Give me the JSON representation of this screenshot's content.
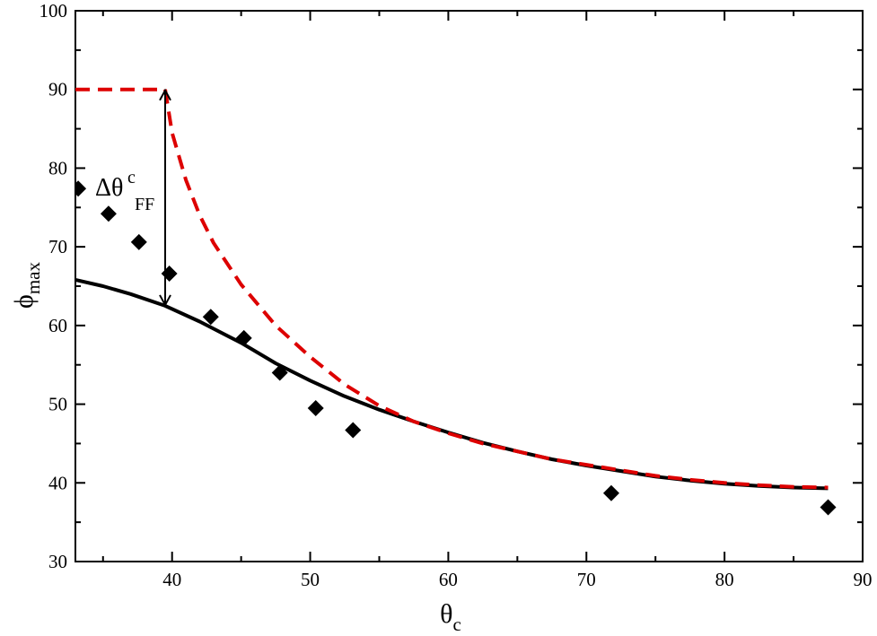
{
  "chart_data": {
    "type": "scatter",
    "title": "",
    "xlabel": {
      "main": "θ",
      "sub": "c"
    },
    "ylabel": {
      "main": "ϕ",
      "sub": "max"
    },
    "xlim": [
      33,
      90
    ],
    "ylim": [
      30,
      100
    ],
    "xticks": [
      40,
      50,
      60,
      70,
      80,
      90
    ],
    "yticks": [
      30,
      40,
      50,
      60,
      70,
      80,
      90,
      100
    ],
    "grid": false,
    "legend": "none",
    "series": [
      {
        "kind": "line",
        "style": "solid",
        "color": "#000000",
        "x": [
          33,
          35,
          37,
          39.5,
          42,
          45,
          47.5,
          50,
          52.5,
          55,
          57.5,
          60,
          62.5,
          65,
          67.5,
          70,
          72.5,
          75,
          77.5,
          80,
          82.5,
          85,
          87.5
        ],
        "y": [
          65.8,
          65.0,
          64.0,
          62.5,
          60.5,
          57.8,
          55.2,
          53.0,
          51.0,
          49.3,
          47.8,
          46.4,
          45.1,
          44.0,
          43.0,
          42.2,
          41.5,
          40.8,
          40.3,
          39.9,
          39.6,
          39.4,
          39.3
        ]
      },
      {
        "kind": "line",
        "style": "dashed",
        "color": "#dd0000",
        "x": [
          33,
          36,
          39.5,
          40,
          41,
          42,
          43,
          45,
          47.5,
          50,
          52.5,
          55,
          57.5,
          60,
          62.5,
          65,
          67.5,
          70,
          72.5,
          75,
          77.5,
          80,
          82.5,
          85,
          87.5
        ],
        "y": [
          90,
          90,
          90,
          84.5,
          78.5,
          74.0,
          70.5,
          65.2,
          60.0,
          56.0,
          52.5,
          49.8,
          47.8,
          46.3,
          45.0,
          44.0,
          43.0,
          42.3,
          41.6,
          40.9,
          40.4,
          40.0,
          39.7,
          39.5,
          39.4
        ]
      },
      {
        "kind": "markers",
        "marker": "diamond",
        "color": "#000000",
        "x": [
          33.2,
          35.4,
          37.6,
          39.8,
          42.8,
          45.2,
          47.8,
          50.4,
          53.1,
          71.8,
          87.5
        ],
        "y": [
          77.4,
          74.2,
          70.6,
          66.6,
          61.1,
          58.4,
          54.0,
          49.5,
          46.7,
          38.7,
          36.9
        ]
      }
    ],
    "annotations": [
      {
        "type": "double-arrow",
        "x": 39.5,
        "y_from": 62.5,
        "y_to": 90,
        "label": {
          "main": "Δθ",
          "sup": "c",
          "sub": "FF"
        }
      }
    ]
  }
}
